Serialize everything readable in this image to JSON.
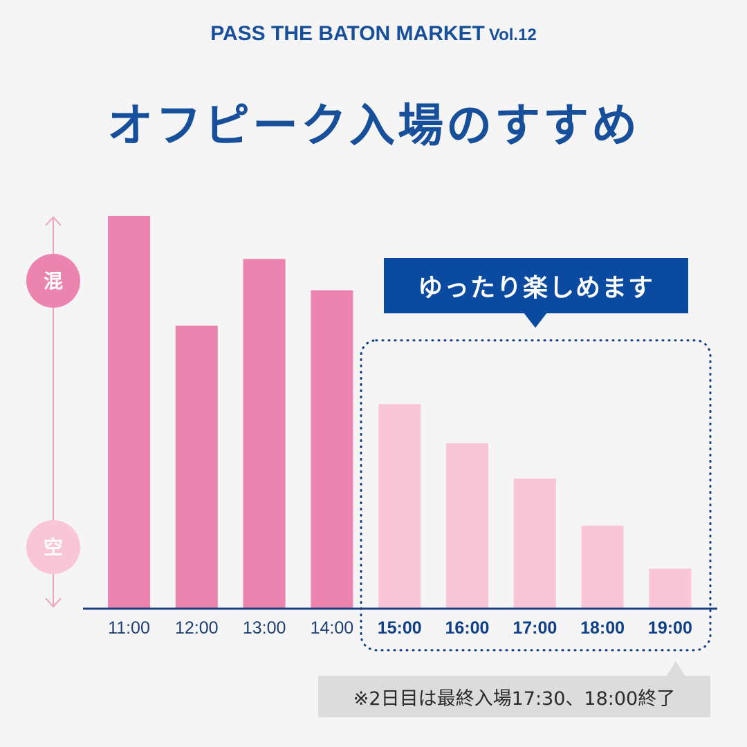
{
  "header": {
    "event": "PASS THE BATON MARKET",
    "volume": "Vol.12"
  },
  "title": "オフピーク入場のすすめ",
  "callout": "ゆったり楽しめます",
  "note": "※2日目は最終入場17:30、18:00終了",
  "colors": {
    "peak": "#ec84b0",
    "offpeak": "#f8c6d6",
    "axis": "#1b3f7e",
    "brand": "#174f9a",
    "dotted_box": "#0f3f86",
    "y_arrow": "#f0a2c2"
  },
  "chart_data": {
    "type": "bar",
    "title": "",
    "xlabel": "",
    "ylabel": "",
    "y_top_label": "混",
    "y_bottom_label": "空",
    "categories": [
      "11:00",
      "12:00",
      "13:00",
      "14:00",
      "15:00",
      "16:00",
      "17:00",
      "18:00",
      "19:00"
    ],
    "values": [
      100,
      72,
      89,
      81,
      52,
      42,
      33,
      21,
      10
    ],
    "ylim": [
      0,
      100
    ],
    "highlighted_categories": [
      "15:00",
      "16:00",
      "17:00",
      "18:00",
      "19:00"
    ],
    "grid": false
  }
}
